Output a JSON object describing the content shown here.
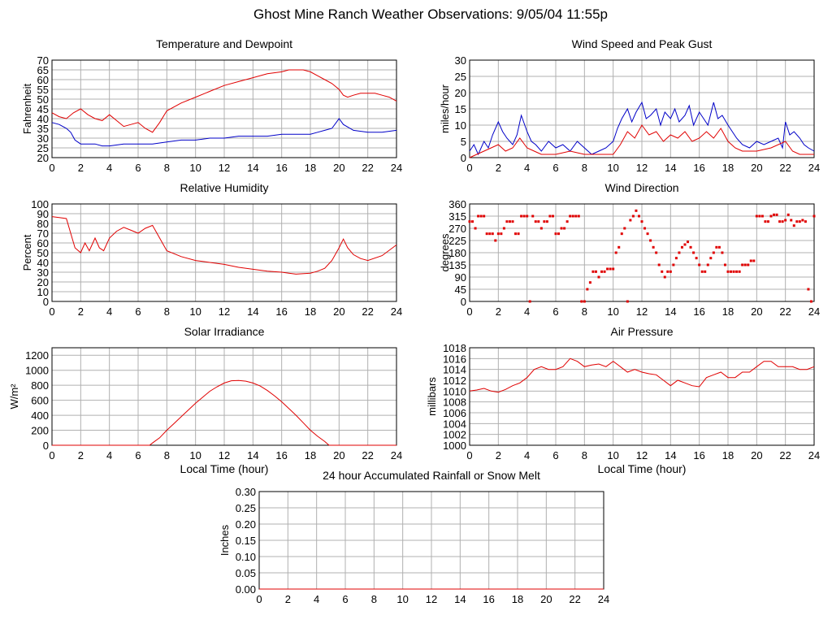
{
  "page_title": "Ghost Mine Ranch Weather Observations: 9/05/04 11:55p",
  "colors": {
    "series_red": "#e00000",
    "series_blue": "#0000c8",
    "grid": "#b0b0b0",
    "frame": "#000000"
  },
  "chart_data": [
    {
      "id": "temperature",
      "type": "line",
      "title": "Temperature and Dewpoint",
      "xlabel": "",
      "ylabel": "Fahrenheit",
      "xlim": [
        0,
        24
      ],
      "ylim": [
        20,
        70
      ],
      "xticks": [
        0,
        2,
        4,
        6,
        8,
        10,
        12,
        14,
        16,
        18,
        20,
        22,
        24
      ],
      "yticks": [
        20,
        25,
        30,
        35,
        40,
        45,
        50,
        55,
        60,
        65,
        70
      ],
      "grid": true,
      "series": [
        {
          "color": "#e00000",
          "x": [
            0,
            0.5,
            1,
            1.5,
            2,
            2.5,
            3,
            3.5,
            4,
            4.5,
            5,
            5.5,
            6,
            6.5,
            7,
            7.5,
            8,
            9,
            10,
            11,
            12,
            13,
            14,
            15,
            16,
            16.5,
            17,
            17.5,
            18,
            18.5,
            19,
            19.5,
            20,
            20.3,
            20.6,
            21,
            21.5,
            22,
            22.5,
            23,
            23.5,
            24
          ],
          "y": [
            43,
            41,
            40,
            43,
            45,
            42,
            40,
            39,
            42,
            39,
            36,
            37,
            38,
            35,
            33,
            38,
            44,
            48,
            51,
            54,
            57,
            59,
            61,
            63,
            64,
            65,
            65,
            65,
            64,
            62,
            60,
            58,
            55,
            52,
            51,
            52,
            53,
            53,
            53,
            52,
            51,
            49
          ]
        },
        {
          "color": "#0000c8",
          "x": [
            0,
            0.5,
            1,
            1.3,
            1.6,
            2,
            2.5,
            3,
            3.5,
            4,
            5,
            6,
            7,
            8,
            9,
            10,
            11,
            12,
            13,
            14,
            15,
            16,
            17,
            18,
            18.5,
            19,
            19.5,
            19.8,
            20,
            20.3,
            21,
            22,
            23,
            24
          ],
          "y": [
            38,
            37,
            35,
            33,
            29,
            27,
            27,
            27,
            26,
            26,
            27,
            27,
            27,
            28,
            29,
            29,
            30,
            30,
            31,
            31,
            31,
            32,
            32,
            32,
            33,
            34,
            35,
            38,
            40,
            37,
            34,
            33,
            33,
            34
          ]
        }
      ]
    },
    {
      "id": "wind-speed",
      "type": "line",
      "title": "Wind Speed and Peak Gust",
      "xlabel": "",
      "ylabel": "miles/hour",
      "xlim": [
        0,
        24
      ],
      "ylim": [
        0,
        30
      ],
      "xticks": [
        0,
        2,
        4,
        6,
        8,
        10,
        12,
        14,
        16,
        18,
        20,
        22,
        24
      ],
      "yticks": [
        0,
        5,
        10,
        15,
        20,
        25,
        30
      ],
      "grid": true,
      "series": [
        {
          "color": "#0000c8",
          "x": [
            0,
            0.3,
            0.6,
            1,
            1.3,
            1.6,
            2,
            2.3,
            2.6,
            3,
            3.3,
            3.6,
            4,
            4.3,
            4.6,
            5,
            5.5,
            6,
            6.5,
            7,
            7.5,
            8,
            8.5,
            9,
            9.5,
            10,
            10.3,
            10.6,
            11,
            11.3,
            11.6,
            12,
            12.3,
            12.6,
            13,
            13.3,
            13.6,
            14,
            14.3,
            14.6,
            15,
            15.3,
            15.6,
            16,
            16.3,
            16.6,
            17,
            17.3,
            17.6,
            18,
            18.3,
            18.6,
            19,
            19.5,
            20,
            20.5,
            21,
            21.5,
            21.8,
            22,
            22.3,
            22.6,
            23,
            23.3,
            23.6,
            24
          ],
          "y": [
            2,
            4,
            1,
            5,
            3,
            7,
            11,
            8,
            6,
            4,
            7,
            13,
            8,
            5,
            4,
            2,
            5,
            3,
            4,
            2,
            5,
            3,
            1,
            2,
            3,
            5,
            9,
            12,
            15,
            11,
            14,
            17,
            12,
            13,
            15,
            10,
            14,
            12,
            15,
            11,
            13,
            16,
            10,
            14,
            12,
            10,
            17,
            12,
            13,
            10,
            8,
            6,
            4,
            3,
            5,
            4,
            5,
            6,
            3,
            11,
            7,
            8,
            6,
            4,
            3,
            2
          ]
        },
        {
          "color": "#e00000",
          "x": [
            0,
            0.5,
            1,
            1.5,
            2,
            2.5,
            3,
            3.5,
            4,
            4.5,
            5,
            6,
            7,
            8,
            9,
            10,
            10.5,
            11,
            11.5,
            12,
            12.5,
            13,
            13.5,
            14,
            14.5,
            15,
            15.5,
            16,
            16.5,
            17,
            17.5,
            18,
            18.5,
            19,
            20,
            21,
            22,
            22.5,
            23,
            23.5,
            24
          ],
          "y": [
            0,
            1,
            2,
            3,
            4,
            2,
            3,
            6,
            3,
            2,
            1,
            1,
            2,
            1,
            1,
            1,
            4,
            8,
            6,
            10,
            7,
            8,
            5,
            7,
            6,
            8,
            5,
            6,
            8,
            6,
            9,
            5,
            3,
            2,
            2,
            3,
            5,
            2,
            1,
            1,
            1
          ]
        }
      ]
    },
    {
      "id": "humidity",
      "type": "line",
      "title": "Relative Humidity",
      "xlabel": "",
      "ylabel": "Percent",
      "xlim": [
        0,
        24
      ],
      "ylim": [
        0,
        100
      ],
      "xticks": [
        0,
        2,
        4,
        6,
        8,
        10,
        12,
        14,
        16,
        18,
        20,
        22,
        24
      ],
      "yticks": [
        0,
        10,
        20,
        30,
        40,
        50,
        60,
        70,
        80,
        90,
        100
      ],
      "grid": true,
      "series": [
        {
          "color": "#e00000",
          "x": [
            0,
            0.5,
            1,
            1.3,
            1.6,
            2,
            2.3,
            2.6,
            3,
            3.3,
            3.6,
            4,
            4.5,
            5,
            5.5,
            6,
            6.5,
            7,
            7.5,
            8,
            9,
            10,
            11,
            12,
            13,
            14,
            15,
            16,
            16.5,
            17,
            18,
            18.5,
            19,
            19.5,
            20,
            20.3,
            20.6,
            21,
            21.5,
            22,
            23,
            24
          ],
          "y": [
            87,
            86,
            85,
            70,
            55,
            50,
            60,
            52,
            65,
            55,
            52,
            65,
            72,
            76,
            73,
            70,
            75,
            78,
            65,
            52,
            46,
            42,
            40,
            38,
            35,
            33,
            31,
            30,
            29,
            28,
            29,
            31,
            34,
            42,
            55,
            64,
            55,
            48,
            44,
            42,
            47,
            58
          ]
        }
      ]
    },
    {
      "id": "wind-direction",
      "type": "scatter",
      "title": "Wind Direction",
      "xlabel": "",
      "ylabel": "degrees",
      "xlim": [
        0,
        24
      ],
      "ylim": [
        0,
        360
      ],
      "xticks": [
        0,
        2,
        4,
        6,
        8,
        10,
        12,
        14,
        16,
        18,
        20,
        22,
        24
      ],
      "yticks": [
        0,
        45,
        90,
        135,
        180,
        225,
        270,
        315,
        360
      ],
      "grid": true,
      "series": [
        {
          "color": "#e00000",
          "x": [
            0,
            0.2,
            0.4,
            0.6,
            0.8,
            1,
            1.2,
            1.4,
            1.6,
            1.8,
            2,
            2.2,
            2.4,
            2.6,
            2.8,
            3,
            3.2,
            3.4,
            3.6,
            3.8,
            4,
            4.2,
            4.4,
            4.6,
            4.8,
            5,
            5.2,
            5.4,
            5.6,
            5.8,
            6,
            6.2,
            6.4,
            6.6,
            6.8,
            7,
            7.2,
            7.4,
            7.6,
            7.8,
            8,
            8.2,
            8.4,
            8.6,
            8.8,
            9,
            9.2,
            9.4,
            9.6,
            9.8,
            10,
            10.2,
            10.4,
            10.6,
            10.8,
            11,
            11.2,
            11.4,
            11.6,
            11.8,
            12,
            12.2,
            12.4,
            12.6,
            12.8,
            13,
            13.2,
            13.4,
            13.6,
            13.8,
            14,
            14.2,
            14.4,
            14.6,
            14.8,
            15,
            15.2,
            15.4,
            15.6,
            15.8,
            16,
            16.2,
            16.4,
            16.6,
            16.8,
            17,
            17.2,
            17.4,
            17.6,
            17.8,
            18,
            18.2,
            18.4,
            18.6,
            18.8,
            19,
            19.2,
            19.4,
            19.6,
            19.8,
            20,
            20.2,
            20.4,
            20.6,
            20.8,
            21,
            21.2,
            21.4,
            21.6,
            21.8,
            22,
            22.2,
            22.4,
            22.6,
            22.8,
            23,
            23.2,
            23.4,
            23.6,
            23.8,
            24
          ],
          "y": [
            295,
            295,
            270,
            315,
            315,
            315,
            250,
            250,
            250,
            225,
            250,
            250,
            270,
            295,
            295,
            295,
            250,
            250,
            315,
            315,
            315,
            0,
            315,
            295,
            295,
            270,
            295,
            295,
            315,
            315,
            250,
            250,
            270,
            270,
            295,
            315,
            315,
            315,
            315,
            0,
            0,
            45,
            70,
            110,
            110,
            90,
            110,
            110,
            120,
            120,
            120,
            180,
            200,
            250,
            270,
            0,
            300,
            315,
            335,
            315,
            295,
            270,
            250,
            225,
            200,
            180,
            135,
            110,
            90,
            110,
            110,
            135,
            160,
            180,
            200,
            210,
            220,
            200,
            180,
            160,
            135,
            110,
            110,
            135,
            160,
            180,
            200,
            200,
            180,
            135,
            110,
            110,
            110,
            110,
            110,
            135,
            135,
            135,
            150,
            150,
            315,
            315,
            315,
            295,
            295,
            315,
            320,
            320,
            295,
            295,
            300,
            320,
            300,
            280,
            295,
            295,
            300,
            295,
            45,
            0,
            315
          ]
        }
      ]
    },
    {
      "id": "solar",
      "type": "line",
      "title": "Solar Irradiance",
      "xlabel": "Local Time (hour)",
      "ylabel": "W/m²",
      "xlim": [
        0,
        24
      ],
      "ylim": [
        0,
        1300
      ],
      "xticks": [
        0,
        2,
        4,
        6,
        8,
        10,
        12,
        14,
        16,
        18,
        20,
        22,
        24
      ],
      "yticks": [
        0,
        200,
        400,
        600,
        800,
        1000,
        1200
      ],
      "grid": true,
      "series": [
        {
          "color": "#e00000",
          "x": [
            0,
            6.8,
            7,
            7.5,
            8,
            8.5,
            9,
            9.5,
            10,
            10.5,
            11,
            11.5,
            12,
            12.5,
            13,
            13.5,
            14,
            14.5,
            15,
            15.5,
            16,
            16.5,
            17,
            17.5,
            18,
            18.5,
            19,
            19.3,
            20,
            24
          ],
          "y": [
            0,
            0,
            30,
            100,
            200,
            290,
            380,
            470,
            560,
            640,
            720,
            780,
            830,
            860,
            865,
            855,
            830,
            790,
            730,
            660,
            580,
            490,
            400,
            300,
            200,
            120,
            50,
            0,
            0,
            0
          ]
        }
      ]
    },
    {
      "id": "pressure",
      "type": "line",
      "title": "Air Pressure",
      "xlabel": "Local Time (hour)",
      "ylabel": "millibars",
      "xlim": [
        0,
        24
      ],
      "ylim": [
        1000,
        1018
      ],
      "xticks": [
        0,
        2,
        4,
        6,
        8,
        10,
        12,
        14,
        16,
        18,
        20,
        22,
        24
      ],
      "yticks": [
        1000,
        1002,
        1004,
        1006,
        1008,
        1010,
        1012,
        1014,
        1016,
        1018
      ],
      "grid": true,
      "series": [
        {
          "color": "#e00000",
          "x": [
            0,
            0.5,
            1,
            1.5,
            2,
            2.5,
            3,
            3.5,
            4,
            4.5,
            5,
            5.5,
            6,
            6.5,
            7,
            7.5,
            8,
            8.5,
            9,
            9.5,
            10,
            10.5,
            11,
            11.5,
            12,
            12.5,
            13,
            13.5,
            14,
            14.5,
            15,
            15.5,
            16,
            16.5,
            17,
            17.5,
            18,
            18.5,
            19,
            19.5,
            20,
            20.5,
            21,
            21.5,
            22,
            22.5,
            23,
            23.5,
            24
          ],
          "y": [
            1010,
            1010.2,
            1010.5,
            1010,
            1009.8,
            1010.3,
            1011,
            1011.5,
            1012.5,
            1014,
            1014.5,
            1014,
            1014,
            1014.5,
            1016,
            1015.5,
            1014.5,
            1014.8,
            1015,
            1014.5,
            1015.5,
            1014.5,
            1013.5,
            1014,
            1013.5,
            1013.2,
            1013,
            1012,
            1011,
            1012,
            1011.5,
            1011,
            1010.8,
            1012.5,
            1013,
            1013.5,
            1012.5,
            1012.5,
            1013.5,
            1013.5,
            1014.5,
            1015.5,
            1015.5,
            1014.5,
            1014.5,
            1014.5,
            1014,
            1014,
            1014.5
          ]
        }
      ]
    },
    {
      "id": "rainfall",
      "type": "line",
      "title": "24 hour Accumulated Rainfall or Snow Melt",
      "xlabel": "",
      "ylabel": "Inches",
      "xlim": [
        0,
        24
      ],
      "ylim": [
        0,
        0.3
      ],
      "xticks": [
        0,
        2,
        4,
        6,
        8,
        10,
        12,
        14,
        16,
        18,
        20,
        22,
        24
      ],
      "yticks": [
        "0.00",
        "0.05",
        "0.10",
        "0.15",
        "0.20",
        "0.25",
        "0.30"
      ],
      "grid": true,
      "series": [
        {
          "color": "#e00000",
          "x": [
            0,
            24
          ],
          "y": [
            0,
            0
          ]
        }
      ]
    }
  ]
}
